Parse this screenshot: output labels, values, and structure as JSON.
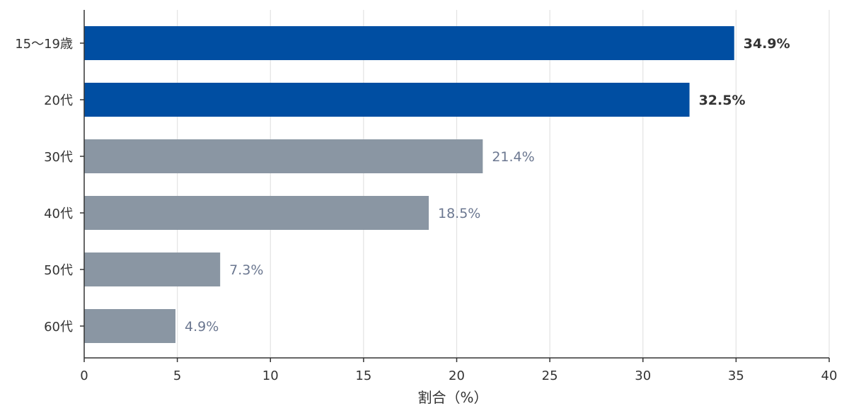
{
  "chart_data": {
    "type": "bar",
    "orientation": "horizontal",
    "categories": [
      "15〜19歳",
      "20代",
      "30代",
      "40代",
      "50代",
      "60代"
    ],
    "values": [
      34.9,
      32.5,
      21.4,
      18.5,
      7.3,
      4.9
    ],
    "value_labels": [
      "34.9%",
      "32.5%",
      "21.4%",
      "18.5%",
      "7.3%",
      "4.9%"
    ],
    "highlighted": [
      true,
      true,
      false,
      false,
      false,
      false
    ],
    "title": "",
    "xlabel": "割合（%）",
    "ylabel": "",
    "xlim": [
      0,
      40
    ],
    "xticks": [
      0,
      5,
      10,
      15,
      20,
      25,
      30,
      35,
      40
    ],
    "grid": "vertical",
    "colors": {
      "highlight": "#004ea2",
      "default": "#8a96a3",
      "highlight_label": "#333333",
      "default_label": "#6b7790",
      "grid": "#e3e3e3",
      "axis": "#333333"
    }
  }
}
